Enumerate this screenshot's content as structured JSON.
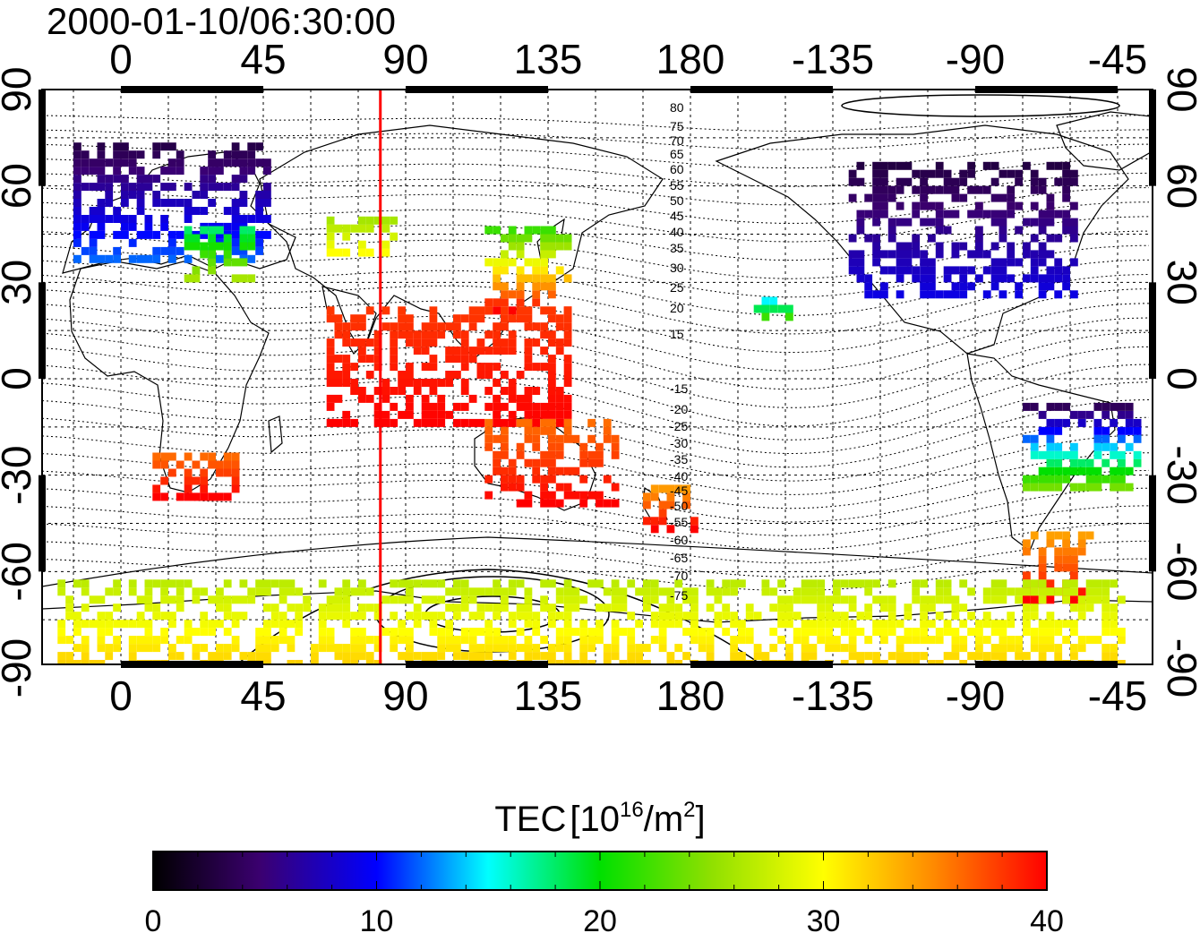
{
  "title": "2000-01-10/06:30:00",
  "map": {
    "lon_labels": [
      "0",
      "45",
      "90",
      "135",
      "180",
      "-135",
      "-90",
      "-45"
    ],
    "lat_labels": [
      "90",
      "60",
      "30",
      "0",
      "-30",
      "-60",
      "-90"
    ],
    "red_line_longitude": 82,
    "magnetic_latitude_labels": [
      "80",
      "75",
      "70",
      "65",
      "60",
      "55",
      "50",
      "45",
      "40",
      "35",
      "30",
      "25",
      "20",
      "15",
      "-15",
      "-20",
      "-25",
      "-30",
      "-35",
      "-40",
      "-45",
      "-50",
      "-55",
      "-60",
      "-65",
      "-70",
      "-75"
    ]
  },
  "colorbar": {
    "label_prefix": "TEC",
    "label_bracket_open": "[",
    "label_base": "10",
    "label_exp": "16",
    "label_unit": "/m",
    "label_unit_exp": "2",
    "label_bracket_close": "]",
    "min": 0,
    "max": 40,
    "tick_labels": [
      "0",
      "10",
      "20",
      "30",
      "40"
    ],
    "colors": [
      "#000000",
      "#3b0070",
      "#0000ff",
      "#00ffff",
      "#00e000",
      "#90e000",
      "#ffff00",
      "#ff8800",
      "#ff0000"
    ]
  },
  "chart_data": {
    "type": "heatmap",
    "title": "2000-01-10/06:30:00",
    "xlabel": "",
    "ylabel": "",
    "xlim": [
      -22,
      315
    ],
    "ylim": [
      -90,
      90
    ],
    "value_label": "TEC [10^16/m^2]",
    "value_range": [
      0,
      40
    ],
    "grid": true,
    "regions": [
      {
        "name_hint": "Europe",
        "lon": [
          -15,
          45
        ],
        "lat": [
          36,
          72
        ],
        "tec": [
          3,
          12
        ]
      },
      {
        "name_hint": "Southern Europe / Mediterranean",
        "lon": [
          20,
          40
        ],
        "lat": [
          30,
          45
        ],
        "tec": [
          18,
          26
        ]
      },
      {
        "name_hint": "Central Asia",
        "lon": [
          65,
          85
        ],
        "lat": [
          38,
          48
        ],
        "tec": [
          26,
          30
        ]
      },
      {
        "name_hint": "East Asia",
        "lon": [
          115,
          140
        ],
        "lat": [
          20,
          45
        ],
        "tec": [
          22,
          40
        ]
      },
      {
        "name_hint": "South / Southeast Asia",
        "lon": [
          65,
          140
        ],
        "lat": [
          -15,
          20
        ],
        "tec": [
          38,
          40
        ]
      },
      {
        "name_hint": "Australia",
        "lon": [
          115,
          155
        ],
        "lat": [
          -40,
          -15
        ],
        "tec": [
          36,
          40
        ]
      },
      {
        "name_hint": "New Zealand",
        "lon": [
          165,
          180
        ],
        "lat": [
          -48,
          -35
        ],
        "tec": [
          34,
          40
        ]
      },
      {
        "name_hint": "North America",
        "lon": [
          -130,
          -60
        ],
        "lat": [
          25,
          65
        ],
        "tec": [
          3,
          9
        ]
      },
      {
        "name_hint": "Hawaii",
        "lon": [
          -160,
          -150
        ],
        "lat": [
          18,
          25
        ],
        "tec": [
          12,
          22
        ]
      },
      {
        "name_hint": "South America",
        "lon": [
          -75,
          -40
        ],
        "lat": [
          -35,
          -10
        ],
        "tec": [
          4,
          24
        ]
      },
      {
        "name_hint": "Southern South America",
        "lon": [
          -75,
          -55
        ],
        "lat": [
          -70,
          -50
        ],
        "tec": [
          34,
          40
        ]
      },
      {
        "name_hint": "Southern Africa",
        "lon": [
          10,
          35
        ],
        "lat": [
          -38,
          -25
        ],
        "tec": [
          36,
          40
        ]
      },
      {
        "name_hint": "Antarctica",
        "lon": [
          -20,
          315
        ],
        "lat": [
          -90,
          -65
        ],
        "tec": [
          27,
          32
        ]
      }
    ]
  }
}
